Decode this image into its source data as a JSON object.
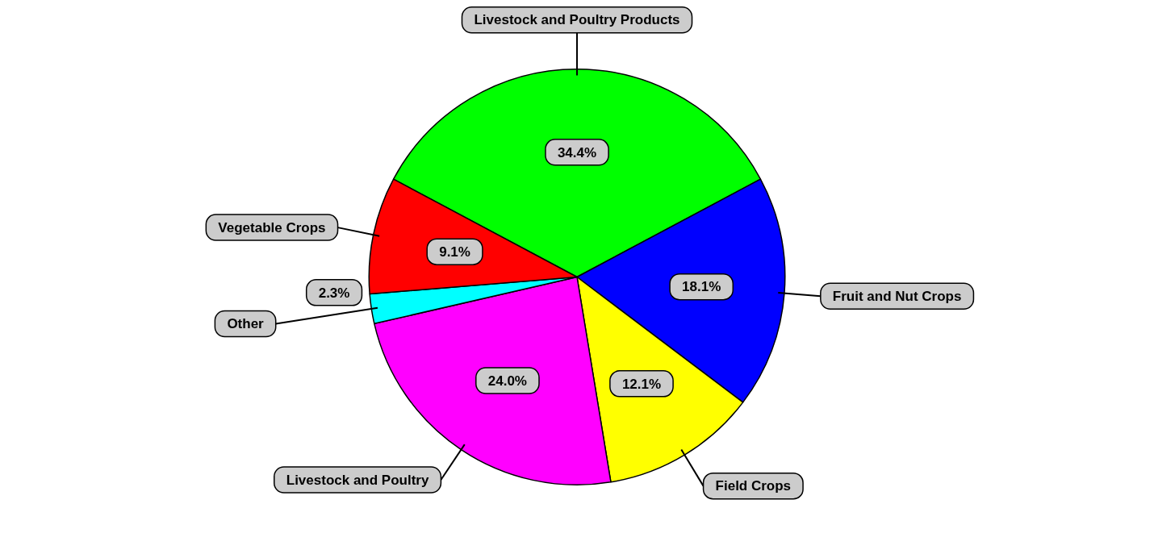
{
  "chart_data": {
    "type": "pie",
    "categories": [
      "Livestock and Poultry Products",
      "Fruit and Nut Crops",
      "Field Crops",
      "Livestock and Poultry",
      "Other",
      "Vegetable Crops"
    ],
    "values": [
      34.4,
      18.1,
      12.1,
      24.0,
      2.3,
      9.1
    ],
    "colors": [
      "#00ff00",
      "#0000ff",
      "#ffff00",
      "#ff00ff",
      "#00ffff",
      "#ff0000"
    ],
    "value_labels": [
      "34.4%",
      "18.1%",
      "12.1%",
      "24.0%",
      "2.3%",
      "9.1%"
    ],
    "legend": false
  }
}
